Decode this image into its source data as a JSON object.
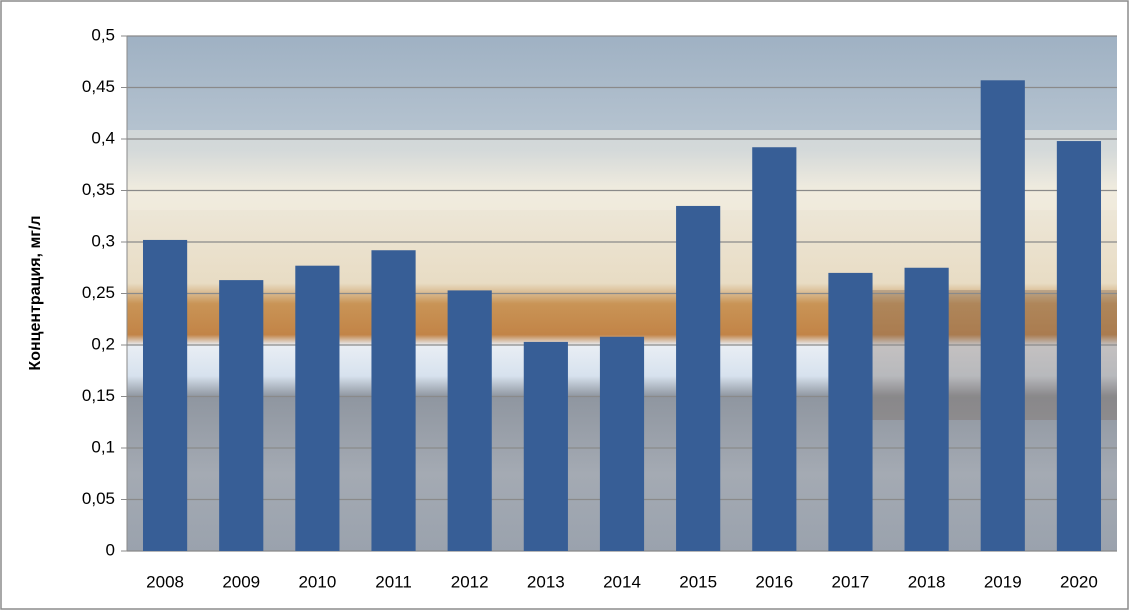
{
  "chart_data": {
    "type": "bar",
    "y_label": "Концентрация, мг/л",
    "categories": [
      "2008",
      "2009",
      "2010",
      "2011",
      "2012",
      "2013",
      "2014",
      "2015",
      "2016",
      "2017",
      "2018",
      "2019",
      "2020"
    ],
    "values": [
      0.302,
      0.263,
      0.277,
      0.292,
      0.253,
      0.203,
      0.208,
      0.335,
      0.392,
      0.27,
      0.275,
      0.457,
      0.398
    ],
    "color": "#375e96",
    "ylim": [
      0,
      0.5
    ],
    "yticks": [
      0,
      {
        "value": 0.05,
        "label": "0,05"
      },
      {
        "value": 0.1,
        "label": "0,1"
      },
      {
        "value": 0.15,
        "label": "0,15"
      },
      {
        "value": 0.2,
        "label": "0,2"
      },
      {
        "value": 0.25,
        "label": "0,25"
      },
      {
        "value": 0.3,
        "label": "0,3"
      },
      {
        "value": 0.35,
        "label": "0,35"
      },
      {
        "value": 0.4,
        "label": "0,4"
      },
      {
        "value": 0.45,
        "label": "0,45"
      },
      {
        "value": 0.5,
        "label": "0,5"
      }
    ],
    "grid": true
  }
}
